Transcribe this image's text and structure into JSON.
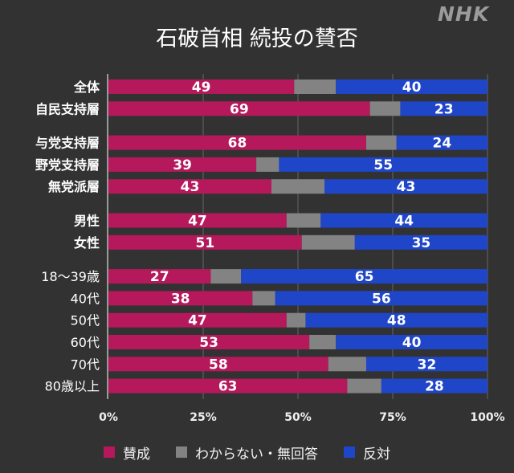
{
  "brand": {
    "logo_text": "NHK"
  },
  "chart_data": {
    "type": "bar",
    "orientation": "horizontal",
    "stacked": true,
    "title": "石破首相 続投の賛否",
    "xlabel": "",
    "ylabel": "",
    "xlim": [
      0,
      100
    ],
    "xticks": [
      0,
      25,
      50,
      75,
      100
    ],
    "xtick_labels": [
      "0%",
      "25%",
      "50%",
      "75%",
      "100%"
    ],
    "grid": true,
    "legend_position": "bottom",
    "categories": [
      "全体",
      "自民支持層",
      "与党支持層",
      "野党支持層",
      "無党派層",
      "男性",
      "女性",
      "18〜39歳",
      "40代",
      "50代",
      "60代",
      "70代",
      "80歳以上"
    ],
    "category_groups": [
      0,
      0,
      1,
      1,
      1,
      2,
      2,
      3,
      3,
      3,
      3,
      3,
      3
    ],
    "series": [
      {
        "name": "賛成",
        "color": "#b5195b",
        "values": [
          49,
          69,
          68,
          39,
          43,
          47,
          51,
          27,
          38,
          47,
          53,
          58,
          63
        ],
        "labeled": true
      },
      {
        "name": "わからない・無回答",
        "color": "#838383",
        "values": [
          11,
          8,
          8,
          6,
          14,
          9,
          14,
          8,
          6,
          5,
          7,
          10,
          9
        ],
        "labeled": false
      },
      {
        "name": "反対",
        "color": "#1f46c8",
        "values": [
          40,
          23,
          24,
          55,
          43,
          44,
          35,
          65,
          56,
          48,
          40,
          32,
          28
        ],
        "labeled": true
      }
    ]
  },
  "colors": {
    "background": "#323232",
    "axis": "#bdbdbd",
    "grid": "#5a5a5a"
  }
}
